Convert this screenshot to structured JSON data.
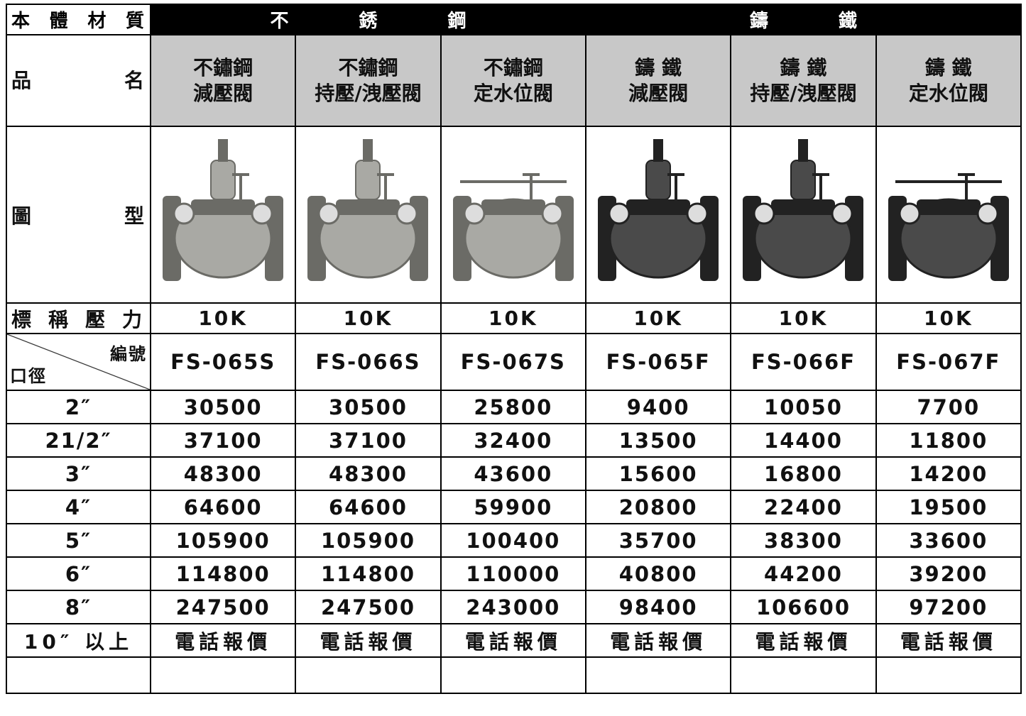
{
  "table": {
    "header": {
      "material": "本 體 材 質",
      "groups": [
        "不 銹 鋼",
        "鑄 鐵"
      ]
    },
    "row_labels": {
      "name": "品 名",
      "image": "圖 型",
      "pressure": "標 稱 壓 力",
      "code": "編號",
      "size": "口徑"
    },
    "products": [
      {
        "name": [
          "不鏽鋼",
          "減壓閥"
        ],
        "pressure": "10K",
        "code": "FS-065S"
      },
      {
        "name": [
          "不鏽鋼",
          "持壓/洩壓閥"
        ],
        "pressure": "10K",
        "code": "FS-066S"
      },
      {
        "name": [
          "不鏽鋼",
          "定水位閥"
        ],
        "pressure": "10K",
        "code": "FS-067S"
      },
      {
        "name": [
          "鑄 鐵",
          "減壓閥"
        ],
        "pressure": "10K",
        "code": "FS-065F"
      },
      {
        "name": [
          "鑄 鐵",
          "持壓/洩壓閥"
        ],
        "pressure": "10K",
        "code": "FS-066F"
      },
      {
        "name": [
          "鑄 鐵",
          "定水位閥"
        ],
        "pressure": "10K",
        "code": "FS-067F"
      }
    ],
    "sizes": [
      "2″",
      "21/2″",
      "3″",
      "4″",
      "5″",
      "6″",
      "8″",
      "10″ 以上"
    ],
    "prices": [
      [
        30500,
        30500,
        25800,
        9400,
        10050,
        7700
      ],
      [
        37100,
        37100,
        32400,
        13500,
        14400,
        11800
      ],
      [
        48300,
        48300,
        43600,
        15600,
        16800,
        14200
      ],
      [
        64600,
        64600,
        59900,
        20800,
        22400,
        19500
      ],
      [
        105900,
        105900,
        100400,
        35700,
        38300,
        33600
      ],
      [
        114800,
        114800,
        110000,
        40800,
        44200,
        39200
      ],
      [
        247500,
        247500,
        243000,
        98400,
        106600,
        97200
      ],
      [
        "電話報價",
        "電話報價",
        "電話報價",
        "電話報價",
        "電話報價",
        "電話報價"
      ]
    ]
  }
}
